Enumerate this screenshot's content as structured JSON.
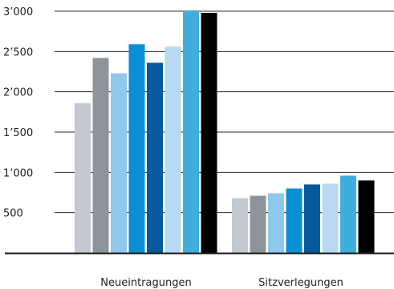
{
  "chart_data": {
    "type": "bar",
    "title": "",
    "xlabel": "",
    "ylabel": "",
    "ylim": [
      0,
      3000
    ],
    "grid": true,
    "legend": "none",
    "yticks": [
      {
        "value": 500,
        "label": "500"
      },
      {
        "value": 1000,
        "label": "1’000"
      },
      {
        "value": 1500,
        "label": "1’500"
      },
      {
        "value": 2000,
        "label": "2’000"
      },
      {
        "value": 2500,
        "label": "2’500"
      },
      {
        "value": 3000,
        "label": "3’000"
      }
    ],
    "categories": [
      "Neueintragungen",
      "Sitzverlegungen"
    ],
    "series": [
      {
        "color": "#c4c9cf",
        "values": [
          1860,
          680
        ]
      },
      {
        "color": "#8d959b",
        "values": [
          2420,
          710
        ]
      },
      {
        "color": "#8fc8ea",
        "values": [
          2230,
          740
        ]
      },
      {
        "color": "#0a8fd6",
        "values": [
          2590,
          800
        ]
      },
      {
        "color": "#045a9c",
        "values": [
          2360,
          850
        ]
      },
      {
        "color": "#b7d9f1",
        "values": [
          2560,
          860
        ]
      },
      {
        "color": "#3faedd",
        "values": [
          3000,
          960
        ]
      },
      {
        "color": "#000000",
        "values": [
          2980,
          900
        ]
      }
    ]
  }
}
